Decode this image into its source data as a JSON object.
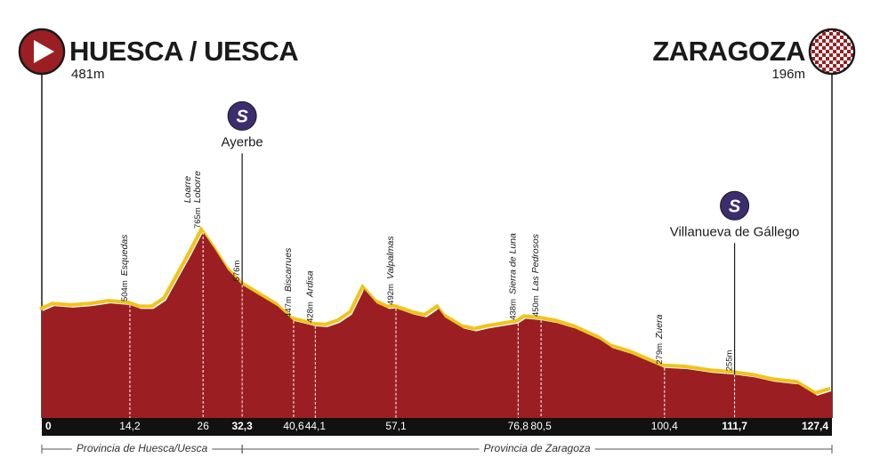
{
  "chart_data": {
    "type": "elevation-profile",
    "start": {
      "name": "HUESCA / UESCA",
      "altitude": {
        "value": 481,
        "label": "481m"
      },
      "km": 0
    },
    "finish": {
      "name": "ZARAGOZA",
      "altitude": {
        "value": 196,
        "label": "196m"
      },
      "km": {
        "value": 127.4,
        "label": "127,4"
      }
    },
    "xlim": [
      0,
      127.4
    ],
    "ylim": [
      100,
      800
    ],
    "color": "#9b1f22",
    "climb_color": "#f0c419",
    "profile": {
      "x": [
        0,
        2,
        5,
        8,
        11,
        14.2,
        16,
        18,
        20,
        22,
        24,
        26,
        28,
        30,
        32.3,
        35,
        38,
        40.6,
        42,
        44.1,
        46,
        48,
        50,
        52,
        54,
        56,
        57.1,
        60,
        62,
        64,
        65,
        68,
        70,
        72,
        76.8,
        78,
        80.5,
        83,
        86,
        90,
        92,
        95,
        100.4,
        104,
        108,
        111.7,
        115,
        118,
        122,
        125,
        127.4
      ],
      "values": [
        481,
        500,
        495,
        500,
        510,
        504,
        490,
        490,
        520,
        600,
        680,
        765,
        700,
        630,
        576,
        540,
        500,
        447,
        440,
        428,
        425,
        440,
        470,
        560,
        510,
        490,
        492,
        470,
        460,
        490,
        460,
        420,
        410,
        420,
        438,
        455,
        450,
        440,
        420,
        380,
        350,
        330,
        279,
        275,
        262,
        255,
        245,
        230,
        220,
        180,
        196
      ]
    },
    "waypoints": [
      {
        "name": "Esquedas",
        "km": {
          "value": 14.2,
          "label": "14,2"
        },
        "altitude": {
          "value": 504,
          "label": "504m"
        }
      },
      {
        "name": [
          "Loarre",
          "Loborre"
        ],
        "km": 26,
        "altitude": {
          "value": 765,
          "label": "765m"
        }
      },
      {
        "name": "Ayerbe",
        "km": {
          "value": 32.3,
          "label": "32,3"
        },
        "altitude": {
          "value": 576,
          "label": "576m"
        },
        "sprint": "S"
      },
      {
        "name": "Biscarrues",
        "km": {
          "value": 40.6,
          "label": "40,6"
        },
        "altitude": {
          "value": 447,
          "label": "447m"
        }
      },
      {
        "name": "Ardisa",
        "km": {
          "value": 44.1,
          "label": "44,1"
        },
        "altitude": {
          "value": 428,
          "label": "428m"
        }
      },
      {
        "name": "Valpalmas",
        "km": {
          "value": 57.1,
          "label": "57,1"
        },
        "altitude": {
          "value": 492,
          "label": "492m"
        }
      },
      {
        "name": "Sierra de Luna",
        "km": {
          "value": 76.8,
          "label": "76,8"
        },
        "altitude": {
          "value": 438,
          "label": "438m"
        }
      },
      {
        "name": "Las Pedrosos",
        "km": {
          "value": 80.5,
          "label": "80,5"
        },
        "altitude": {
          "value": 450,
          "label": "450m"
        }
      },
      {
        "name": "Zuera",
        "km": {
          "value": 100.4,
          "label": "100,4"
        },
        "altitude": {
          "value": 279,
          "label": "279m"
        }
      },
      {
        "name": "Villanueva de Gállego",
        "km": {
          "value": 111.7,
          "label": "111,7"
        },
        "altitude": {
          "value": 255,
          "label": "255m"
        },
        "sprint": "S"
      }
    ],
    "provinces": [
      {
        "name": "Provincia de Huesca/Uesca",
        "from": 0,
        "to": {
          "value": 32.3,
          "label": "32,3"
        }
      },
      {
        "name": "Provincia de Zaragoza",
        "from": {
          "value": 32.3,
          "label": "32,3"
        },
        "to": {
          "value": 127.4,
          "label": "127,4"
        }
      }
    ]
  }
}
